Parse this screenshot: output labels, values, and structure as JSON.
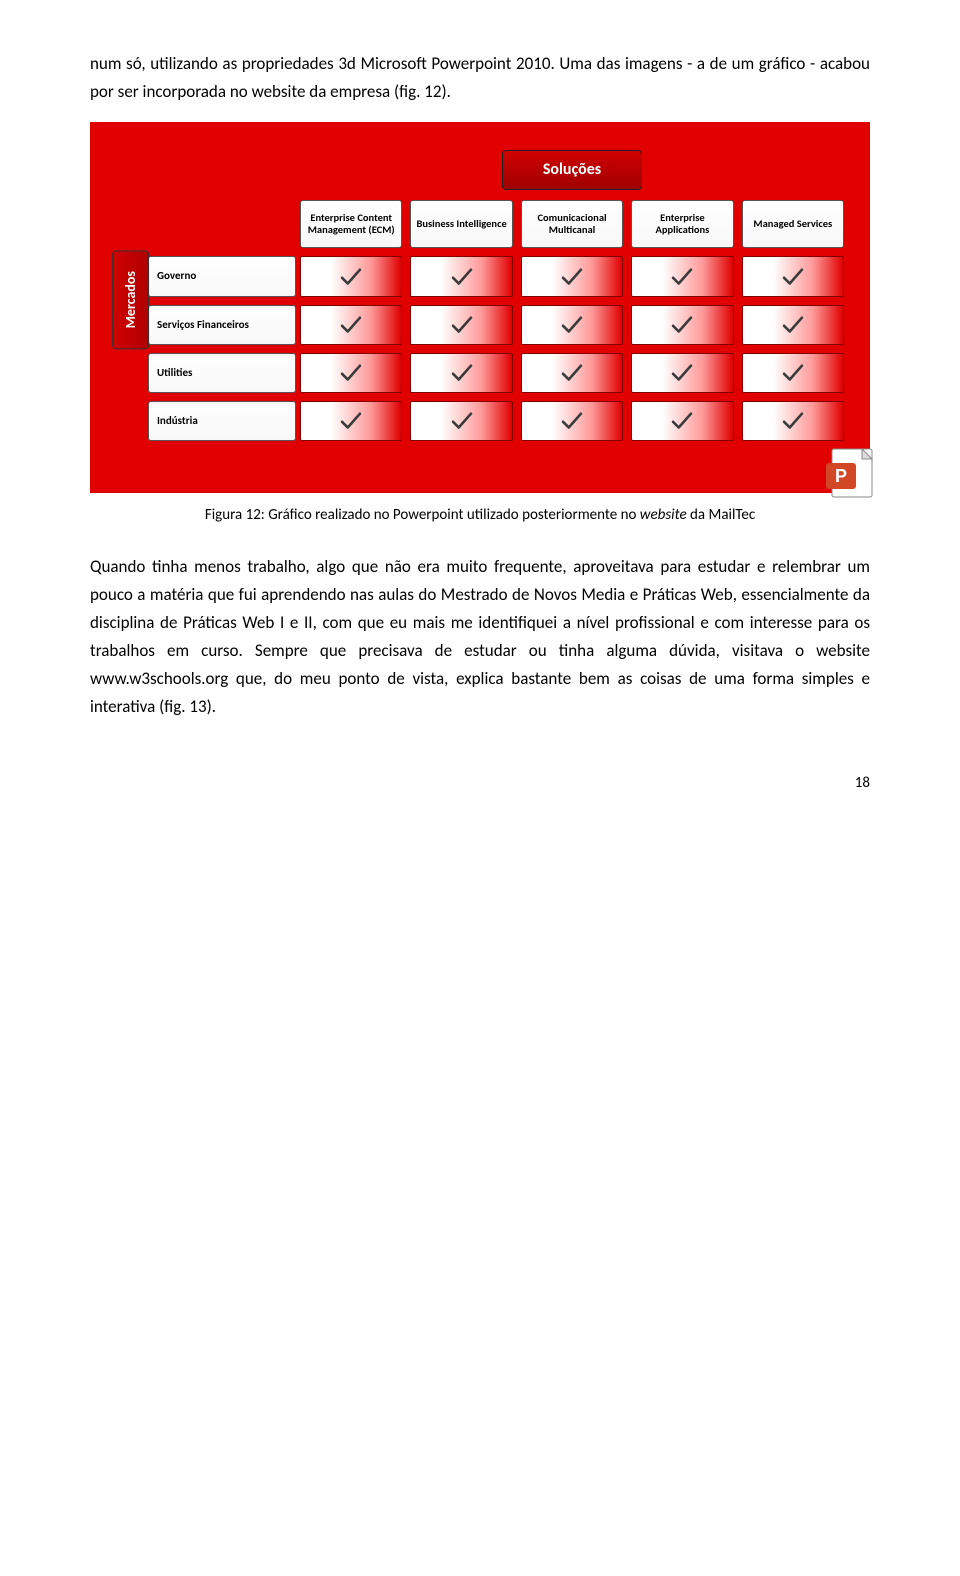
{
  "intro": "num só, utilizando as propriedades 3d Microsoft Powerpoint 2010. Uma das imagens - a de um gráfico - acabou por ser incorporada no website da empresa (fig. 12).",
  "matrix": {
    "top_label": "Soluções",
    "left_label": "Mercados",
    "columns": [
      "Enterprise Content Management (ECM)",
      "Business Intelligence",
      "Comunicacional Multicanal",
      "Enterprise Applications",
      "Managed Services"
    ],
    "rows": [
      {
        "label": "Governo",
        "cells": [
          true,
          true,
          true,
          true,
          true
        ]
      },
      {
        "label": "Serviços Financeiros",
        "cells": [
          true,
          true,
          true,
          true,
          true
        ]
      },
      {
        "label": "Utilities",
        "cells": [
          true,
          true,
          true,
          true,
          true
        ]
      },
      {
        "label": "Indústria",
        "cells": [
          true,
          true,
          true,
          true,
          true
        ]
      }
    ],
    "colors": {
      "bg": "#e00000",
      "header_fill": "#ffffff",
      "header_border": "#555555",
      "cell_grad_from": "#ffffff",
      "cell_grad_to": "#e00000",
      "check_stroke": "#3a3a3a",
      "tab_red_from": "#d00000",
      "tab_red_to": "#a00000"
    }
  },
  "caption_prefix": "Figura 12: Gráfico realizado no Powerpoint utilizado posteriormente no ",
  "caption_italic_word": "website",
  "caption_suffix": " da MailTec",
  "body1": "Quando tinha menos trabalho, algo que não era muito frequente, aproveitava para estudar e relembrar um pouco a matéria que fui aprendendo nas aulas do Mestrado de Novos Media e Práticas Web, essencialmente da disciplina de Práticas Web I e II, com que eu mais me identifiquei a nível profissional e com interesse para os trabalhos em curso. Sempre que precisava de estudar ou tinha alguma dúvida, visitava o website www.w3schools.org que, do meu ponto de vista, explica bastante bem as coisas de uma forma simples e interativa (fig. 13).",
  "page_number": "18",
  "icon_name": "powerpoint-file-icon"
}
